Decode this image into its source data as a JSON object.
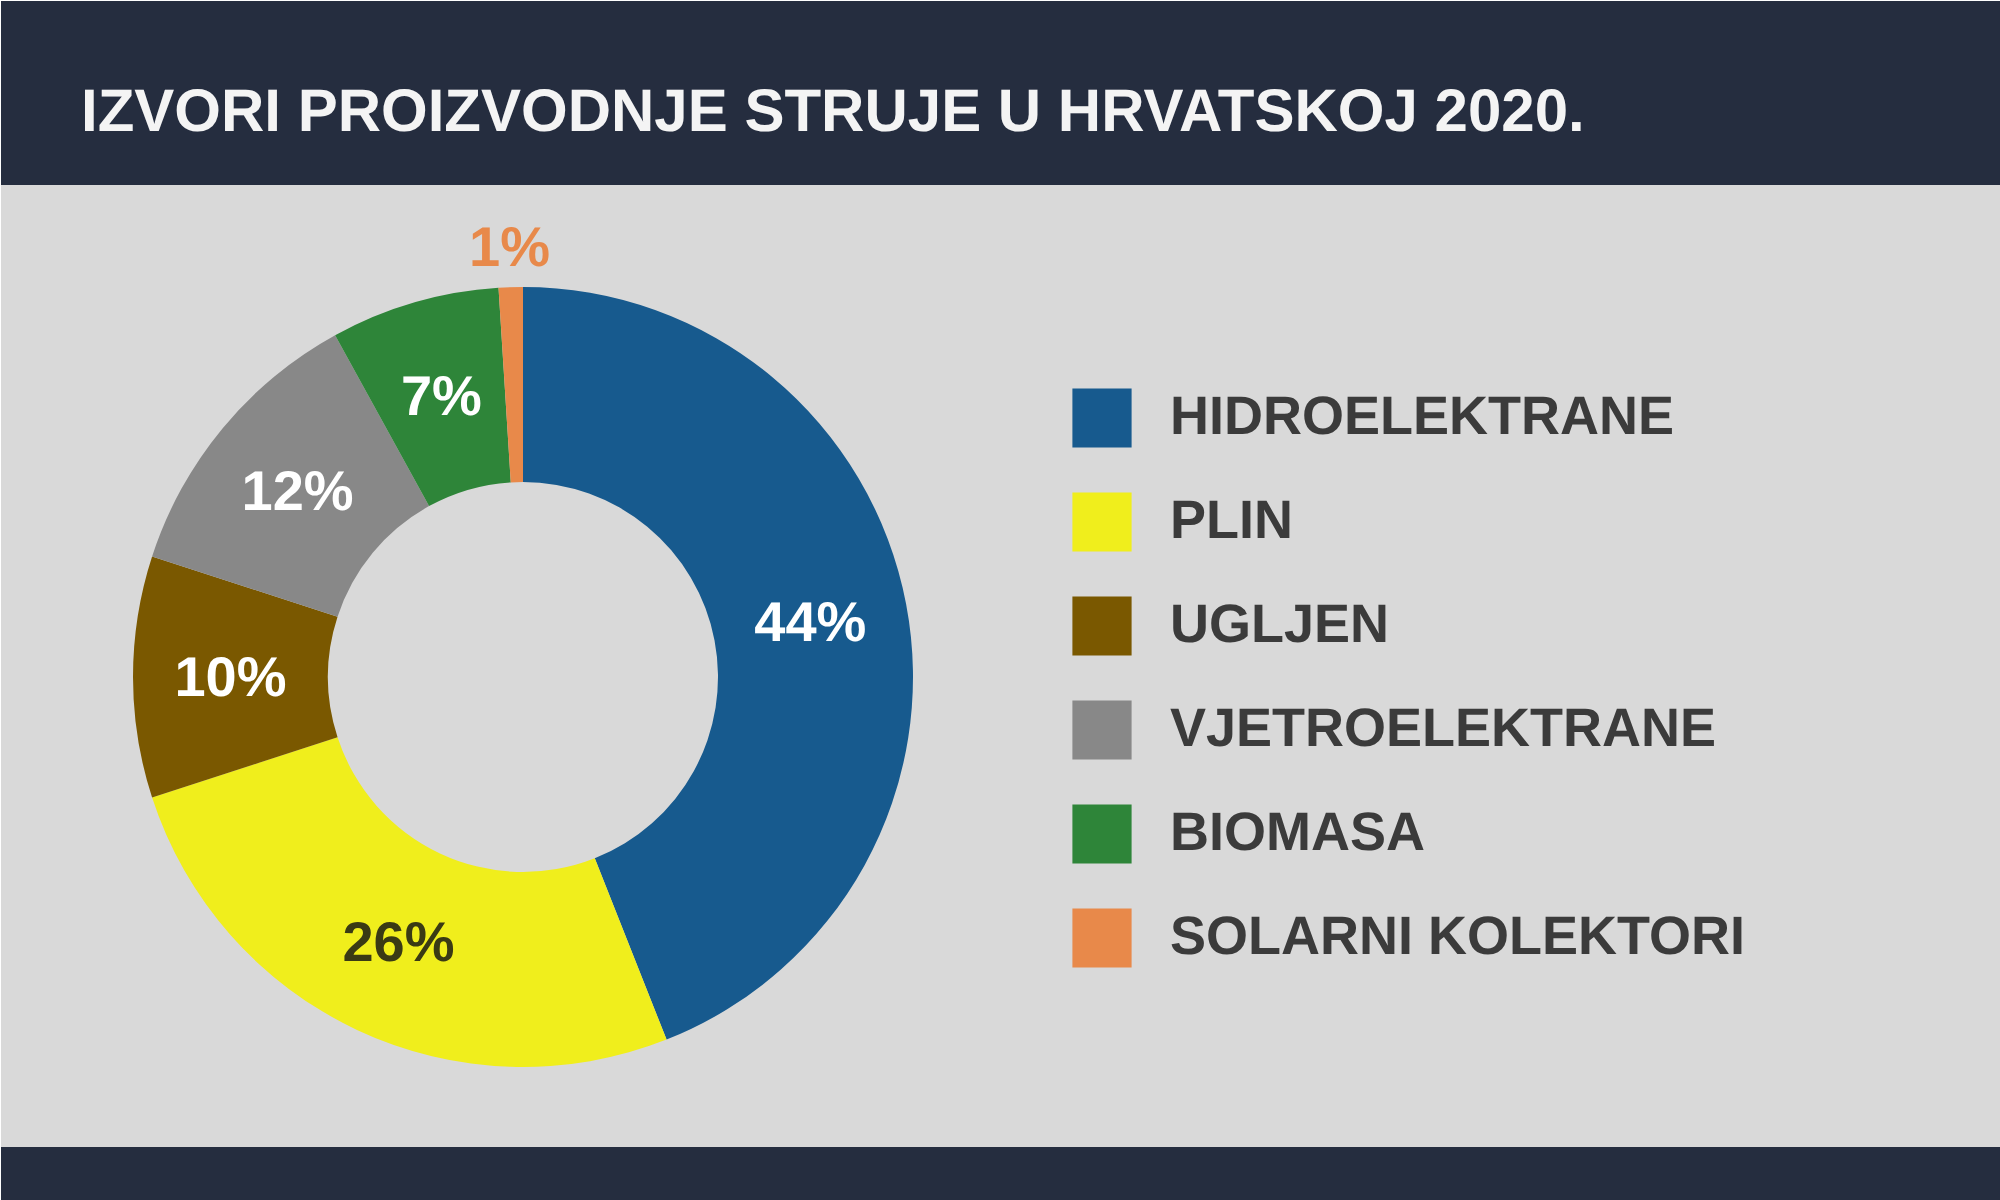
{
  "chart_data": {
    "type": "donut",
    "title": "IZVORI PROIZVODNJE STRUJE U HRVATSKOJ 2020.",
    "categories": [
      "HIDROELEKTRANE",
      "PLIN",
      "UGLJEN",
      "VJETROELEKTRANE",
      "BIOMASA",
      "SOLARNI KOLEKTORI"
    ],
    "values": [
      44,
      26,
      10,
      12,
      7,
      1
    ],
    "colors": [
      "#175a8e",
      "#f0ee1c",
      "#7a5800",
      "#888888",
      "#2e8539",
      "#e8894a"
    ],
    "value_labels": [
      "44%",
      "26%",
      "10%",
      "12%",
      "7%",
      "1%"
    ],
    "legend": "right"
  }
}
